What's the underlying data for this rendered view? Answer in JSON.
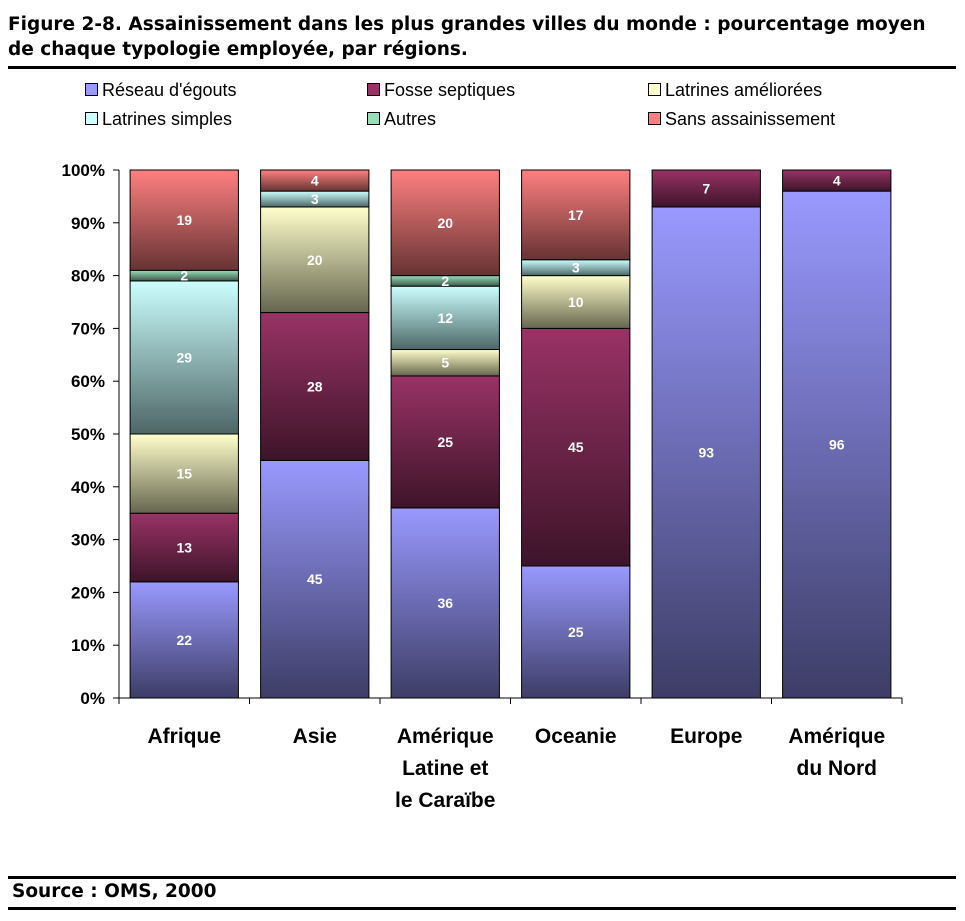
{
  "title": "Figure 2-8. Assainissement dans les plus grandes villes du monde : pourcentage moyen de chaque typologie employée, par régions.",
  "source": "Source : OMS, 2000",
  "chart_data": {
    "type": "bar",
    "stacked": true,
    "percent": true,
    "categories": [
      [
        "Afrique"
      ],
      [
        "Asie"
      ],
      [
        "Amérique",
        "Latine et",
        "le Caraïbe"
      ],
      [
        "Oceanie"
      ],
      [
        "Europe"
      ],
      [
        "Amérique",
        "du Nord"
      ]
    ],
    "series": [
      {
        "name": "Réseau d'égouts",
        "color": "#9999ff",
        "dark": "#3d3d66",
        "values": [
          22,
          45,
          36,
          25,
          93,
          96
        ]
      },
      {
        "name": "Fosse septiques",
        "color": "#993366",
        "dark": "#3d1429",
        "values": [
          13,
          28,
          25,
          45,
          7,
          4
        ]
      },
      {
        "name": "Latrines améliorées",
        "color": "#ffffcc",
        "dark": "#66664f",
        "values": [
          15,
          20,
          5,
          10,
          0,
          0
        ]
      },
      {
        "name": "Latrines simples",
        "color": "#ccffff",
        "dark": "#4d6666",
        "values": [
          29,
          3,
          12,
          3,
          0,
          0
        ]
      },
      {
        "name": "Autres",
        "color": "#99ddbb",
        "dark": "#3d5b4b",
        "values": [
          2,
          0,
          2,
          0,
          0,
          0
        ]
      },
      {
        "name": "Sans assainissement",
        "color": "#ff8080",
        "dark": "#663333",
        "values": [
          19,
          4,
          20,
          17,
          0,
          0
        ]
      }
    ],
    "data_labels": [
      [
        "22",
        "13",
        "15",
        "29",
        "2",
        "19"
      ],
      [
        "45",
        "28",
        "20",
        "3",
        "",
        "4"
      ],
      [
        "36",
        "25",
        "5",
        "12",
        "2",
        "20"
      ],
      [
        "25",
        "45",
        "10",
        "3",
        "",
        "17"
      ],
      [
        "93",
        "7",
        "",
        "",
        "",
        ""
      ],
      [
        "96",
        "4",
        "",
        "",
        "",
        ""
      ]
    ],
    "ylim": [
      0,
      100
    ],
    "yticks": [
      "0%",
      "10%",
      "20%",
      "30%",
      "40%",
      "50%",
      "60%",
      "70%",
      "80%",
      "90%",
      "100%"
    ],
    "legend_position": "top",
    "grid": false
  }
}
